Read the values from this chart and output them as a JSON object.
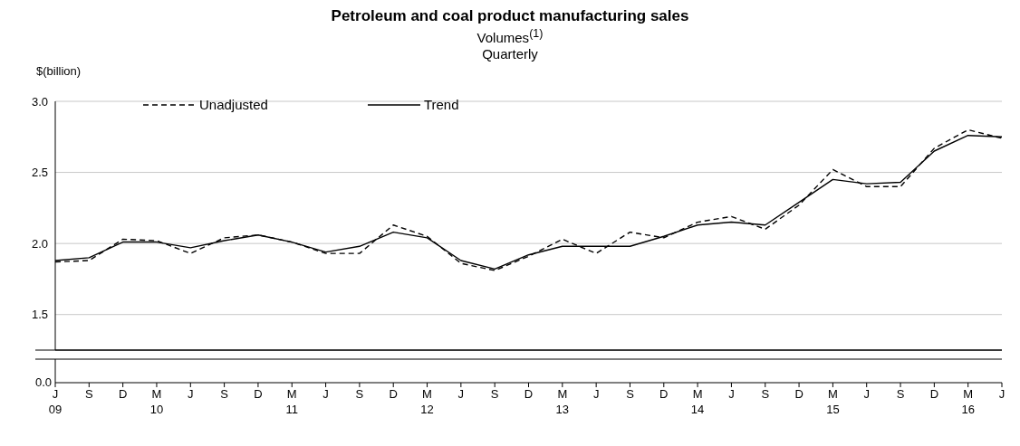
{
  "chart_data": {
    "type": "line",
    "title": "Petroleum and coal product manufacturing sales",
    "subtitle": "Volumes$^{(1)}$\nQuarterly",
    "ylabel": "$(billion)",
    "categories": [
      "J\n09",
      "S",
      "D",
      "M\n10",
      "J",
      "S",
      "D",
      "M\n11",
      "J",
      "S",
      "D",
      "M\n12",
      "J",
      "S",
      "D",
      "M\n13",
      "J",
      "S",
      "D",
      "M\n14",
      "J",
      "S",
      "D",
      "M\n15",
      "J",
      "S",
      "D",
      "M\n16",
      "J"
    ],
    "series": [
      {
        "name": "Unadjusted",
        "color": "#000000",
        "line_style": "dashed",
        "values": [
          1.87,
          1.88,
          2.03,
          2.02,
          1.93,
          2.04,
          2.06,
          2.01,
          1.93,
          1.93,
          2.13,
          2.05,
          1.86,
          1.81,
          1.91,
          2.03,
          1.93,
          2.08,
          2.04,
          2.15,
          2.19,
          2.1,
          2.27,
          2.52,
          2.4,
          2.4,
          2.67,
          2.8,
          2.74
        ]
      },
      {
        "name": "Trend",
        "color": "#000000",
        "line_style": "solid",
        "values": [
          1.88,
          1.9,
          2.01,
          2.01,
          1.97,
          2.02,
          2.06,
          2.01,
          1.94,
          1.98,
          2.08,
          2.04,
          1.88,
          1.82,
          1.92,
          1.98,
          1.98,
          1.98,
          2.05,
          2.13,
          2.15,
          2.13,
          2.29,
          2.45,
          2.42,
          2.43,
          2.65,
          2.76,
          2.75
        ]
      }
    ],
    "annotations": [
      "0.0"
    ],
    "ylim": [
      1.25,
      3.0
    ],
    "yticks": [
      1.5,
      {
        "value": 2,
        "label": "2.0"
      },
      2.5,
      {
        "value": 3,
        "label": "3.0"
      }
    ],
    "grid": "y",
    "legend": "top",
    "marker": "none"
  }
}
